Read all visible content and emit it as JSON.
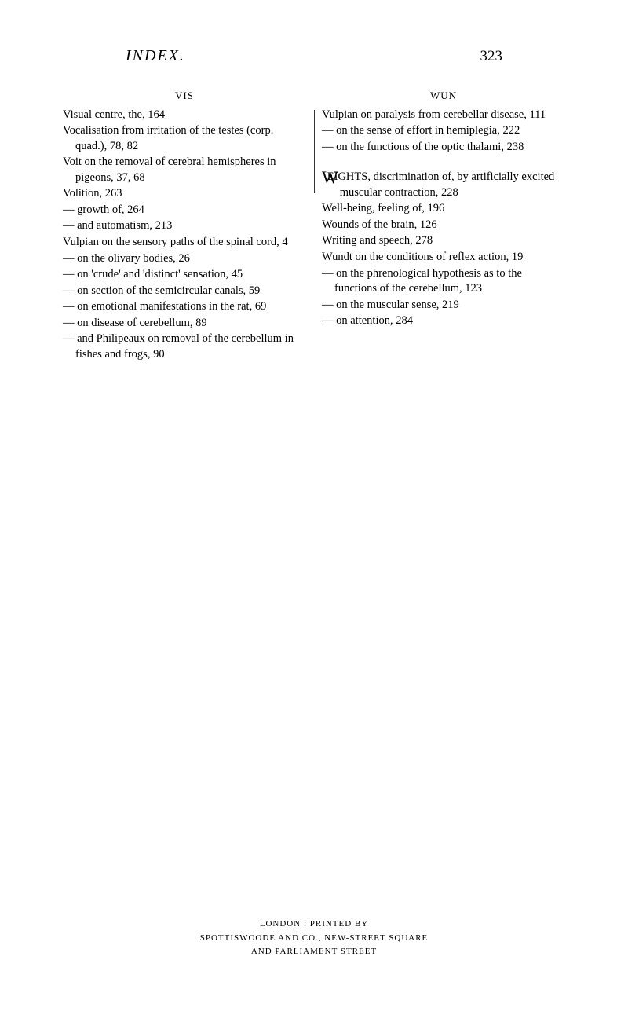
{
  "header": {
    "title": "INDEX.",
    "pageNumber": "323"
  },
  "leftColumn": {
    "header": "VIS",
    "entries": [
      "Visual centre, the, 164",
      "Vocalisation from irritation of the testes (corp. quad.), 78, 82",
      "Voit on the removal of cerebral hemispheres in pigeons, 37, 68",
      "Volition, 263",
      "— growth of, 264",
      "— and automatism, 213",
      "Vulpian on the sensory paths of the spinal cord, 4",
      "— on the olivary bodies, 26",
      "— on 'crude' and 'distinct' sensation, 45",
      "— on section of the semicircular canals, 59",
      "— on emotional manifestations in the rat, 69",
      "— on disease of cerebellum, 89",
      "— and Philipeaux on removal of the cerebellum in fishes and frogs, 90"
    ]
  },
  "rightColumn": {
    "header": "WUN",
    "entries1": [
      "Vulpian on paralysis from cerebellar disease, 111",
      "— on the sense of effort in hemiplegia, 222",
      "— on the functions of the optic thalami, 238"
    ],
    "weightsFirst": "W",
    "weightsText": "EIGHTS, discrimination of, by artificially excited muscular contraction, 228",
    "entries2": [
      "Well-being, feeling of, 196",
      "Wounds of the brain, 126",
      "Writing and speech, 278",
      "Wundt on the conditions of reflex action, 19",
      "— on the phrenological hypothesis as to the functions of the cerebellum, 123",
      "— on the muscular sense, 219",
      "— on attention, 284"
    ]
  },
  "footer": {
    "line1": "LONDON : PRINTED BY",
    "line2": "SPOTTISWOODE AND CO., NEW-STREET SQUARE",
    "line3": "AND PARLIAMENT STREET"
  }
}
